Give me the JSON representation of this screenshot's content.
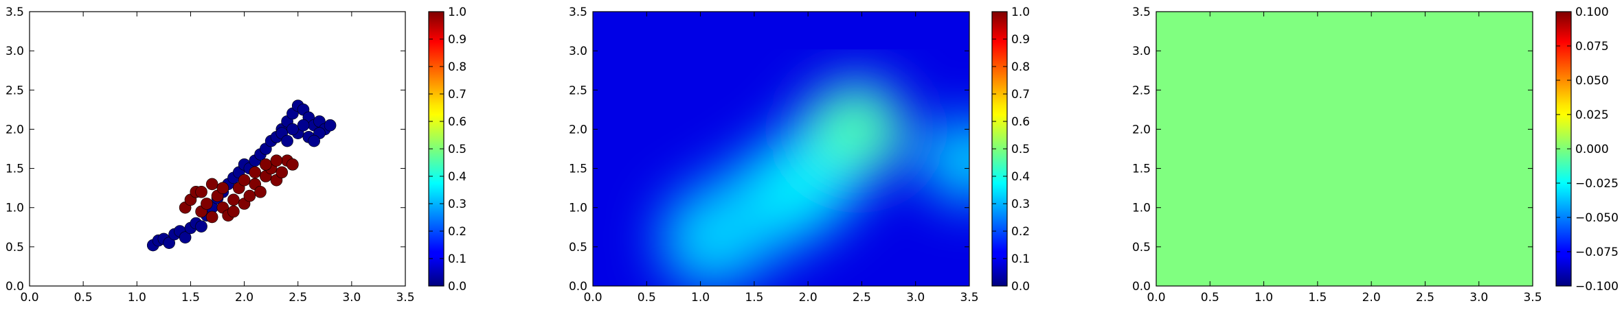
{
  "chart_data": [
    {
      "type": "scatter",
      "title": "",
      "xlabel": "",
      "ylabel": "",
      "xlim": [
        0,
        3.5
      ],
      "ylim": [
        0,
        3.5
      ],
      "xticks": [
        "0.0",
        "0.5",
        "1.0",
        "1.5",
        "2.0",
        "2.5",
        "3.0",
        "3.5"
      ],
      "yticks": [
        "0.0",
        "0.5",
        "1.0",
        "1.5",
        "2.0",
        "2.5",
        "3.0",
        "3.5"
      ],
      "colorbar": {
        "colormap": "jet",
        "range": [
          0,
          1
        ],
        "ticks": [
          "0.0",
          "0.1",
          "0.2",
          "0.3",
          "0.4",
          "0.5",
          "0.6",
          "0.7",
          "0.8",
          "0.9",
          "1.0"
        ]
      },
      "series": [
        {
          "value": 0.0,
          "color": "#00008f",
          "points": [
            [
              1.15,
              0.52
            ],
            [
              1.2,
              0.58
            ],
            [
              1.25,
              0.6
            ],
            [
              1.3,
              0.55
            ],
            [
              1.35,
              0.66
            ],
            [
              1.4,
              0.7
            ],
            [
              1.45,
              0.62
            ],
            [
              1.5,
              0.74
            ],
            [
              1.55,
              0.8
            ],
            [
              1.6,
              0.76
            ],
            [
              1.65,
              0.9
            ],
            [
              1.7,
              1.0
            ],
            [
              1.75,
              1.12
            ],
            [
              1.8,
              1.2
            ],
            [
              1.85,
              1.3
            ],
            [
              1.9,
              1.38
            ],
            [
              1.95,
              1.45
            ],
            [
              2.0,
              1.55
            ],
            [
              2.05,
              1.5
            ],
            [
              2.1,
              1.6
            ],
            [
              2.15,
              1.68
            ],
            [
              2.2,
              1.75
            ],
            [
              2.25,
              1.85
            ],
            [
              2.3,
              1.9
            ],
            [
              2.35,
              2.0
            ],
            [
              2.4,
              2.1
            ],
            [
              2.45,
              2.2
            ],
            [
              2.5,
              2.3
            ],
            [
              2.55,
              2.25
            ],
            [
              2.6,
              2.15
            ],
            [
              2.65,
              2.05
            ],
            [
              2.7,
              2.1
            ],
            [
              2.75,
              2.0
            ],
            [
              2.8,
              2.05
            ],
            [
              2.5,
              1.95
            ],
            [
              2.55,
              2.05
            ],
            [
              2.45,
              2.0
            ],
            [
              2.35,
              1.95
            ],
            [
              2.6,
              1.9
            ],
            [
              2.7,
              1.95
            ],
            [
              2.65,
              1.85
            ],
            [
              2.4,
              1.85
            ]
          ]
        },
        {
          "value": 1.0,
          "color": "#800000",
          "points": [
            [
              1.45,
              1.0
            ],
            [
              1.5,
              1.1
            ],
            [
              1.55,
              1.2
            ],
            [
              1.6,
              0.95
            ],
            [
              1.65,
              1.05
            ],
            [
              1.7,
              0.88
            ],
            [
              1.75,
              1.15
            ],
            [
              1.8,
              1.0
            ],
            [
              1.85,
              0.9
            ],
            [
              1.9,
              1.1
            ],
            [
              1.95,
              1.25
            ],
            [
              2.0,
              1.05
            ],
            [
              2.05,
              1.15
            ],
            [
              2.1,
              1.3
            ],
            [
              2.15,
              1.2
            ],
            [
              2.2,
              1.4
            ],
            [
              2.25,
              1.5
            ],
            [
              2.3,
              1.35
            ],
            [
              2.35,
              1.45
            ],
            [
              2.4,
              1.6
            ],
            [
              2.45,
              1.55
            ],
            [
              1.6,
              1.2
            ],
            [
              1.7,
              1.3
            ],
            [
              1.8,
              1.25
            ],
            [
              1.9,
              0.95
            ],
            [
              2.0,
              1.35
            ],
            [
              2.1,
              1.45
            ],
            [
              2.2,
              1.55
            ],
            [
              2.3,
              1.6
            ]
          ]
        }
      ]
    },
    {
      "type": "heatmap",
      "title": "",
      "xlabel": "",
      "ylabel": "",
      "xlim": [
        0,
        3.5
      ],
      "ylim": [
        0,
        3.5
      ],
      "xticks": [
        "0.0",
        "0.5",
        "1.0",
        "1.5",
        "2.0",
        "2.5",
        "3.0",
        "3.5"
      ],
      "yticks": [
        "0.0",
        "0.5",
        "1.0",
        "1.5",
        "2.0",
        "2.5",
        "3.0",
        "3.5"
      ],
      "colorbar": {
        "colormap": "jet",
        "range": [
          0,
          1
        ],
        "ticks": [
          "0.0",
          "0.1",
          "0.2",
          "0.3",
          "0.4",
          "0.5",
          "0.6",
          "0.7",
          "0.8",
          "0.9",
          "1.0"
        ]
      },
      "background_value": 0.1,
      "peaks": [
        {
          "x": 2.45,
          "y": 2.0,
          "value": 0.45
        },
        {
          "x": 1.9,
          "y": 1.25,
          "value": 0.36
        },
        {
          "x": 1.1,
          "y": 0.6,
          "value": 0.33
        },
        {
          "x": 3.5,
          "y": 1.6,
          "value": 0.33
        }
      ]
    },
    {
      "type": "heatmap",
      "title": "",
      "xlabel": "",
      "ylabel": "",
      "xlim": [
        0,
        3.5
      ],
      "ylim": [
        0,
        3.5
      ],
      "xticks": [
        "0.0",
        "0.5",
        "1.0",
        "1.5",
        "2.0",
        "2.5",
        "3.0",
        "3.5"
      ],
      "yticks": [
        "0.0",
        "0.5",
        "1.0",
        "1.5",
        "2.0",
        "2.5",
        "3.0",
        "3.5"
      ],
      "colorbar": {
        "colormap": "jet",
        "range": [
          -0.1,
          0.1
        ],
        "ticks": [
          "−0.100",
          "−0.075",
          "−0.050",
          "−0.025",
          "0.000",
          "0.025",
          "0.050",
          "0.075",
          "0.100"
        ]
      },
      "uniform_value": 0.0,
      "fill_color": "#80ff80"
    }
  ]
}
